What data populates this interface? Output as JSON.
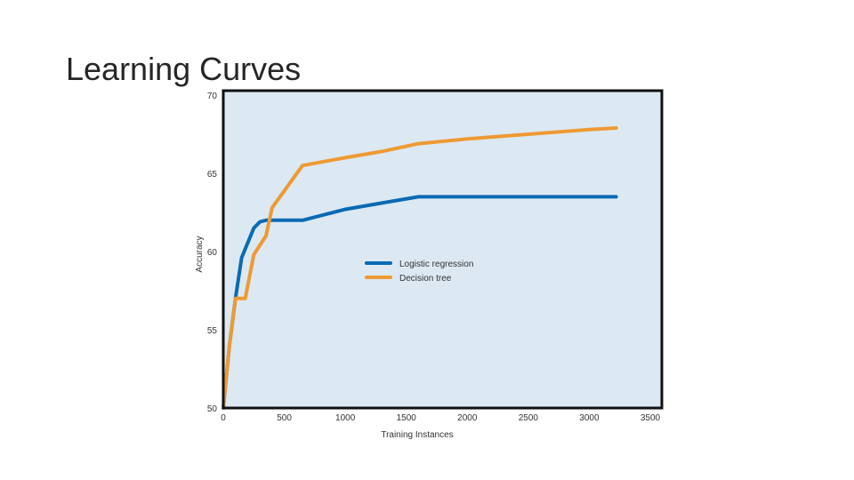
{
  "slide": {
    "title": "Learning Curves"
  },
  "colors": {
    "plot_background": "#dce9f3",
    "frame": "#111111",
    "logistic": "#0a6ab3",
    "tree": "#ee9a33"
  },
  "chart_data": {
    "type": "line",
    "title": "",
    "xlabel": "Training Instances",
    "ylabel": "Accuracy",
    "xlim": [
      0,
      3500
    ],
    "ylim": [
      50,
      70
    ],
    "xticks": [
      0,
      500,
      1000,
      1500,
      2000,
      2500,
      3000,
      3500
    ],
    "yticks": [
      50,
      55,
      60,
      65,
      70
    ],
    "grid": false,
    "legend_position": "center-right",
    "series": [
      {
        "name": "Logistic regression",
        "color": "#0a6ab3",
        "x": [
          0,
          50,
          100,
          150,
          250,
          300,
          350,
          650,
          1000,
          1300,
          1600,
          2000,
          2500,
          3000,
          3220
        ],
        "y": [
          50,
          54,
          57,
          59.6,
          61.5,
          61.9,
          62,
          62,
          62.7,
          63.1,
          63.5,
          63.5,
          63.5,
          63.5,
          63.5
        ]
      },
      {
        "name": "Decision tree",
        "color": "#ee9a33",
        "x": [
          0,
          50,
          100,
          180,
          250,
          350,
          400,
          650,
          1000,
          1300,
          1600,
          2000,
          2500,
          3000,
          3220
        ],
        "y": [
          50,
          54,
          57,
          57,
          59.8,
          61,
          62.8,
          65.5,
          66,
          66.4,
          66.9,
          67.2,
          67.5,
          67.8,
          67.9
        ]
      }
    ]
  }
}
